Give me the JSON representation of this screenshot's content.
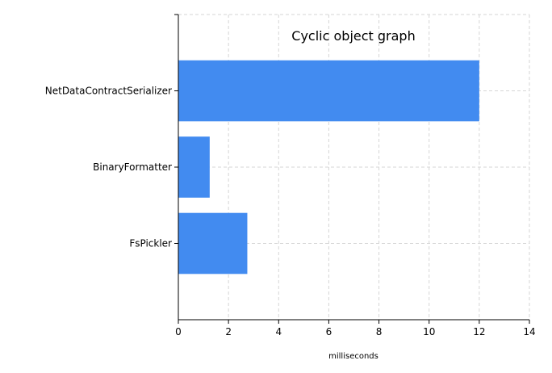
{
  "chart_data": {
    "type": "bar",
    "orientation": "horizontal",
    "title": "Cyclic object graph",
    "xlabel": "milliseconds",
    "ylabel": "",
    "categories": [
      "NetDataContractSerializer",
      "BinaryFormatter",
      "FsPickler"
    ],
    "values": [
      12.0,
      1.25,
      2.75
    ],
    "xlim": [
      0,
      14
    ],
    "xticks": [
      0,
      2,
      4,
      6,
      8,
      10,
      12,
      14
    ],
    "grid": true,
    "legend": "none",
    "bar_color": "#428bf0",
    "grid_color": "#d6d6d6"
  }
}
